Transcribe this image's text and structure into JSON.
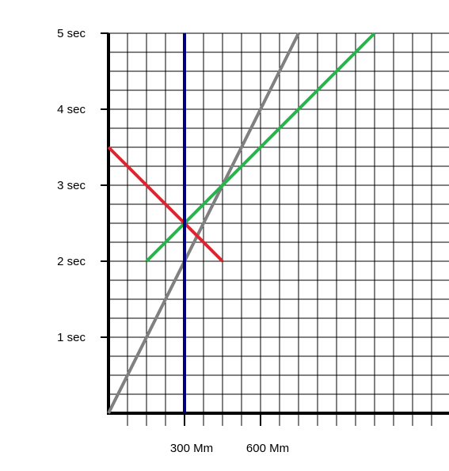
{
  "chart_data": {
    "type": "line",
    "xlim": [
      0,
      1350
    ],
    "ylim": [
      0,
      5
    ],
    "xticks": [
      {
        "value": 300,
        "label": "300 Mm"
      },
      {
        "value": 600,
        "label": "600 Mm"
      }
    ],
    "yticks": [
      {
        "value": 1,
        "label": "1 sec"
      },
      {
        "value": 2,
        "label": "2 sec"
      },
      {
        "value": 3,
        "label": "3 sec"
      },
      {
        "value": 4,
        "label": "4 sec"
      },
      {
        "value": 5,
        "label": "5 sec"
      }
    ],
    "grid": true,
    "series": [
      {
        "color": "#808080",
        "x": [
          0,
          750
        ],
        "values": [
          0,
          5
        ]
      },
      {
        "color": "#2fb04f",
        "x": [
          150,
          1050
        ],
        "values": [
          2,
          5
        ]
      },
      {
        "color": "#e8202a",
        "x": [
          0,
          450
        ],
        "values": [
          3.5,
          2
        ]
      },
      {
        "color": "#00007f",
        "x": [
          300,
          300
        ],
        "values": [
          0,
          5
        ]
      }
    ]
  }
}
